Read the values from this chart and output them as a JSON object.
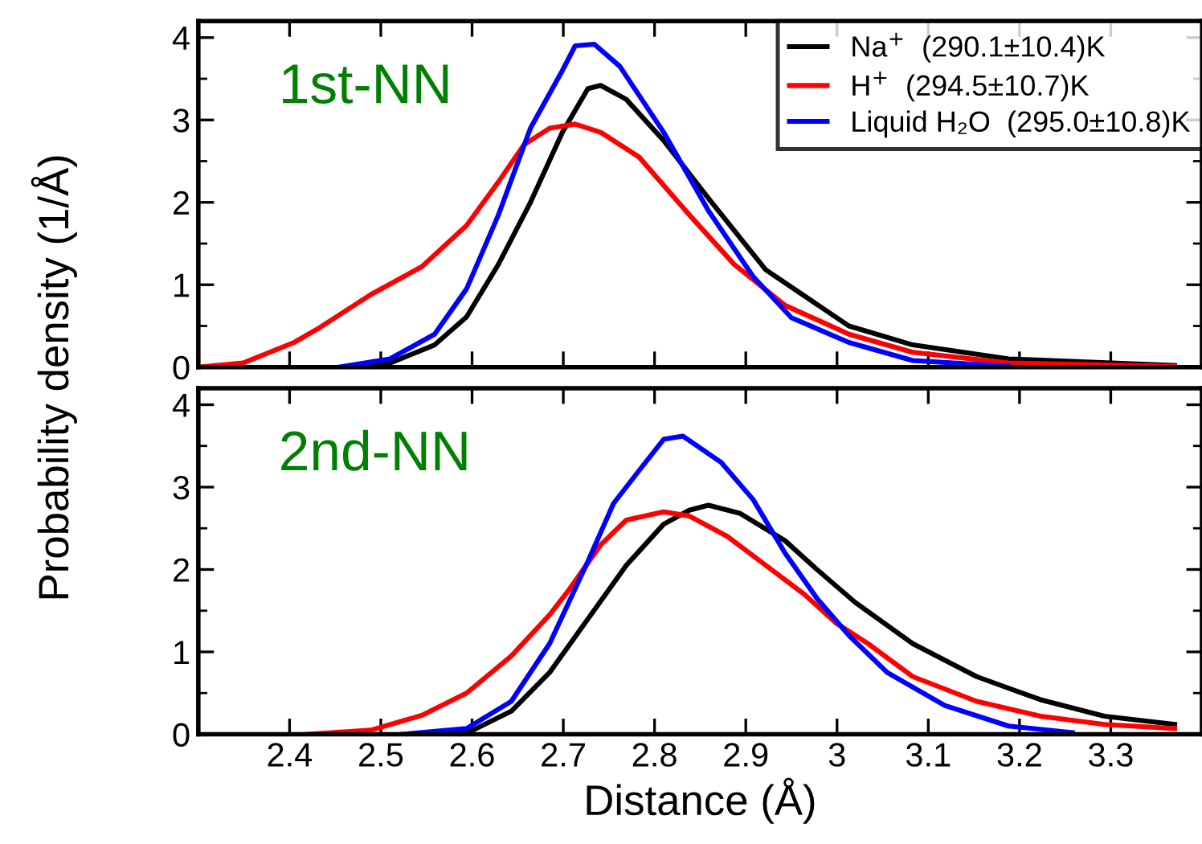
{
  "chart_data": [
    {
      "type": "line",
      "ylabel": "Probability density (1/Å)",
      "annotations": [
        "1st-NN"
      ],
      "xlim": [
        2.3,
        3.4
      ],
      "xticks": [
        2.4,
        2.5,
        2.6,
        2.7,
        2.8,
        2.9,
        3,
        3.1,
        3.2,
        3.3
      ],
      "ylim": [
        0,
        4.2
      ],
      "yticks": [
        0,
        1,
        2,
        3,
        4
      ],
      "tick_labels": "y",
      "legend": "top right",
      "grid": false,
      "series": [
        {
          "name": "Na$^{+}$  (290.1±10.4)K",
          "color": "#000000",
          "x": [
            2.475,
            2.51,
            2.559,
            2.594,
            2.629,
            2.664,
            2.699,
            2.727,
            2.741,
            2.769,
            2.81,
            2.859,
            2.922,
            3.013,
            3.083,
            3.188,
            3.37
          ],
          "values": [
            0,
            0.05,
            0.27,
            0.61,
            1.25,
            2.0,
            2.85,
            3.38,
            3.42,
            3.25,
            2.75,
            2.05,
            1.18,
            0.5,
            0.27,
            0.1,
            0.02
          ]
        },
        {
          "name": "H$^{+}$  (294.5±10.7)K",
          "color": "#ff0000",
          "x": [
            2.3,
            2.349,
            2.405,
            2.433,
            2.489,
            2.545,
            2.594,
            2.629,
            2.657,
            2.685,
            2.713,
            2.741,
            2.783,
            2.838,
            2.887,
            2.943,
            3.013,
            3.083,
            3.188,
            3.37
          ],
          "values": [
            0,
            0.05,
            0.3,
            0.48,
            0.88,
            1.22,
            1.72,
            2.25,
            2.7,
            2.9,
            2.95,
            2.85,
            2.55,
            1.85,
            1.25,
            0.75,
            0.4,
            0.18,
            0.05,
            0.01
          ]
        },
        {
          "name": "Liquid H₂O  (295.0±10.8)K",
          "color": "#0000ff",
          "x": [
            2.454,
            2.51,
            2.559,
            2.594,
            2.629,
            2.664,
            2.699,
            2.713,
            2.734,
            2.762,
            2.81,
            2.859,
            2.908,
            2.95,
            3.013,
            3.083,
            3.188
          ],
          "values": [
            0,
            0.1,
            0.4,
            0.95,
            1.85,
            2.9,
            3.6,
            3.9,
            3.92,
            3.65,
            2.85,
            1.9,
            1.1,
            0.6,
            0.3,
            0.08,
            0.01
          ]
        }
      ]
    },
    {
      "type": "line",
      "xlabel": "Distance (Å)",
      "annotations": [
        "2nd-NN"
      ],
      "xlim": [
        2.3,
        3.4
      ],
      "xticks": [
        2.4,
        2.5,
        2.6,
        2.7,
        2.8,
        2.9,
        3,
        3.1,
        3.2,
        3.3
      ],
      "ylim": [
        0,
        4.2
      ],
      "yticks": [
        0,
        1,
        2,
        3,
        4
      ],
      "grid": false,
      "legend": false,
      "series": [
        {
          "color": "#000000",
          "x": [
            2.559,
            2.601,
            2.643,
            2.685,
            2.727,
            2.769,
            2.81,
            2.838,
            2.859,
            2.894,
            2.943,
            2.978,
            3.02,
            3.083,
            3.153,
            3.223,
            3.293,
            3.37
          ],
          "values": [
            0,
            0.05,
            0.28,
            0.75,
            1.4,
            2.05,
            2.55,
            2.72,
            2.78,
            2.68,
            2.35,
            2.0,
            1.6,
            1.1,
            0.7,
            0.42,
            0.22,
            0.12
          ]
        },
        {
          "color": "#ff0000",
          "x": [
            2.419,
            2.489,
            2.545,
            2.594,
            2.643,
            2.685,
            2.706,
            2.741,
            2.769,
            2.81,
            2.838,
            2.88,
            2.922,
            2.964,
            2.999,
            3.034,
            3.083,
            3.153,
            3.223,
            3.293,
            3.37
          ],
          "values": [
            0,
            0.05,
            0.23,
            0.5,
            0.95,
            1.45,
            1.75,
            2.3,
            2.6,
            2.7,
            2.65,
            2.4,
            2.05,
            1.7,
            1.35,
            1.1,
            0.7,
            0.4,
            0.22,
            0.12,
            0.07
          ]
        },
        {
          "color": "#0000ff",
          "x": [
            2.524,
            2.594,
            2.643,
            2.685,
            2.727,
            2.755,
            2.783,
            2.81,
            2.831,
            2.873,
            2.908,
            2.943,
            2.978,
            3.013,
            3.055,
            3.118,
            3.188,
            3.258
          ],
          "values": [
            0,
            0.07,
            0.4,
            1.1,
            2.1,
            2.8,
            3.2,
            3.58,
            3.62,
            3.3,
            2.85,
            2.2,
            1.65,
            1.2,
            0.75,
            0.35,
            0.1,
            0.02
          ]
        }
      ]
    }
  ]
}
